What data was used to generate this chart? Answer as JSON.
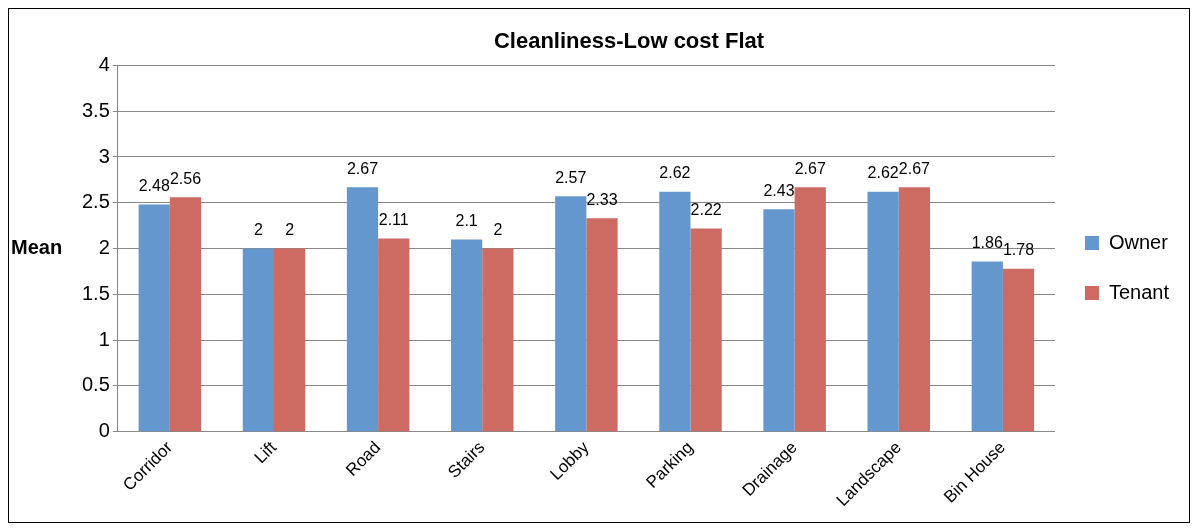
{
  "chart_data": {
    "type": "bar",
    "title": "Cleanliness-Low cost Flat",
    "ylabel": "Mean",
    "categories": [
      "Corridor",
      "Lift",
      "Road",
      "Stairs",
      "Lobby",
      "Parking",
      "Drainage",
      "Landscape",
      "Bin House"
    ],
    "series": [
      {
        "name": "Owner",
        "color": "#6497cd",
        "values": [
          2.48,
          2,
          2.67,
          2.1,
          2.57,
          2.62,
          2.43,
          2.62,
          1.86
        ]
      },
      {
        "name": "Tenant",
        "color": "#cd6a62",
        "values": [
          2.56,
          2,
          2.11,
          2,
          2.33,
          2.22,
          2.67,
          2.67,
          1.78
        ]
      }
    ],
    "ylim": [
      0,
      4
    ],
    "yticks": [
      0,
      0.5,
      1,
      1.5,
      2,
      2.5,
      3,
      3.5,
      4
    ],
    "grid": "y",
    "legend": "right",
    "data_labels": true
  }
}
